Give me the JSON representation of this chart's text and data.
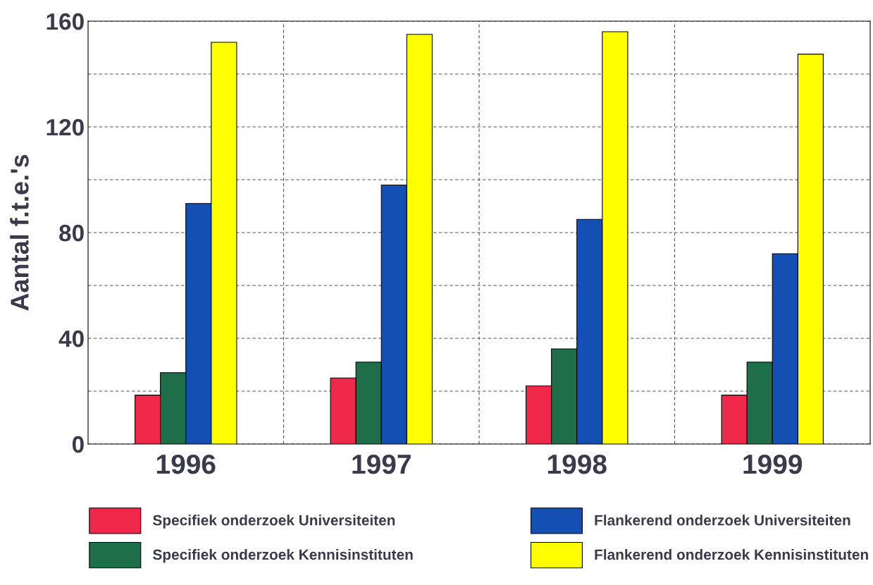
{
  "chart_data": {
    "type": "bar",
    "ylabel": "Aantal f.t.e.'s",
    "categories": [
      "1996",
      "1997",
      "1998",
      "1999"
    ],
    "series": [
      {
        "name": "Specifiek onderzoek Universiteiten",
        "color": "#f0284a",
        "values": [
          18.5,
          25,
          22,
          18.5
        ]
      },
      {
        "name": "Specifiek onderzoek Kennisinstituten",
        "color": "#1e6e4a",
        "values": [
          27,
          31,
          36,
          31
        ]
      },
      {
        "name": "Flankerend onderzoek Universiteiten",
        "color": "#1450b4",
        "values": [
          91,
          98,
          85,
          72
        ]
      },
      {
        "name": "Flankerend onderzoek Kennisinstituten",
        "color": "#ffff00",
        "values": [
          152,
          155,
          156,
          147.5
        ]
      }
    ],
    "ylim": [
      0,
      160
    ],
    "yticks": [
      0,
      {
        "value": 20,
        "label": null
      },
      40,
      {
        "value": 60,
        "label": null
      },
      80,
      {
        "value": 100,
        "label": null
      },
      120,
      {
        "value": 140,
        "label": null
      },
      160
    ],
    "grid": true,
    "legend": "bottom"
  }
}
